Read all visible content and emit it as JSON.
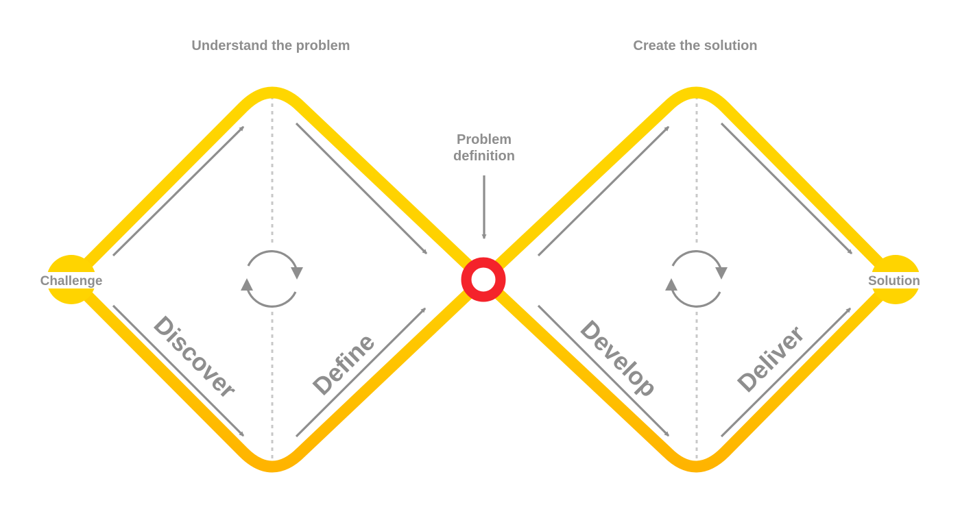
{
  "headings": {
    "left": "Understand the problem",
    "right": "Create the solution"
  },
  "endpoints": {
    "start": "Challenge",
    "end": "Solution"
  },
  "center_pointer": {
    "line1": "Problem",
    "line2": "definition"
  },
  "phases": {
    "discover": "Discover",
    "define": "Define",
    "develop": "Develop",
    "deliver": "Deliver"
  },
  "colors": {
    "diamond_top": "#ffd600",
    "diamond_bottom": "#ffb400",
    "marker_red": "#f4232b",
    "text_gray": "#8e8e8e",
    "guide_gray": "#c8c8c8"
  },
  "icons": {
    "iterate": "cycle-arrows-icon",
    "flow": "diagonal-arrow-icon",
    "marker": "ring-marker-icon"
  }
}
